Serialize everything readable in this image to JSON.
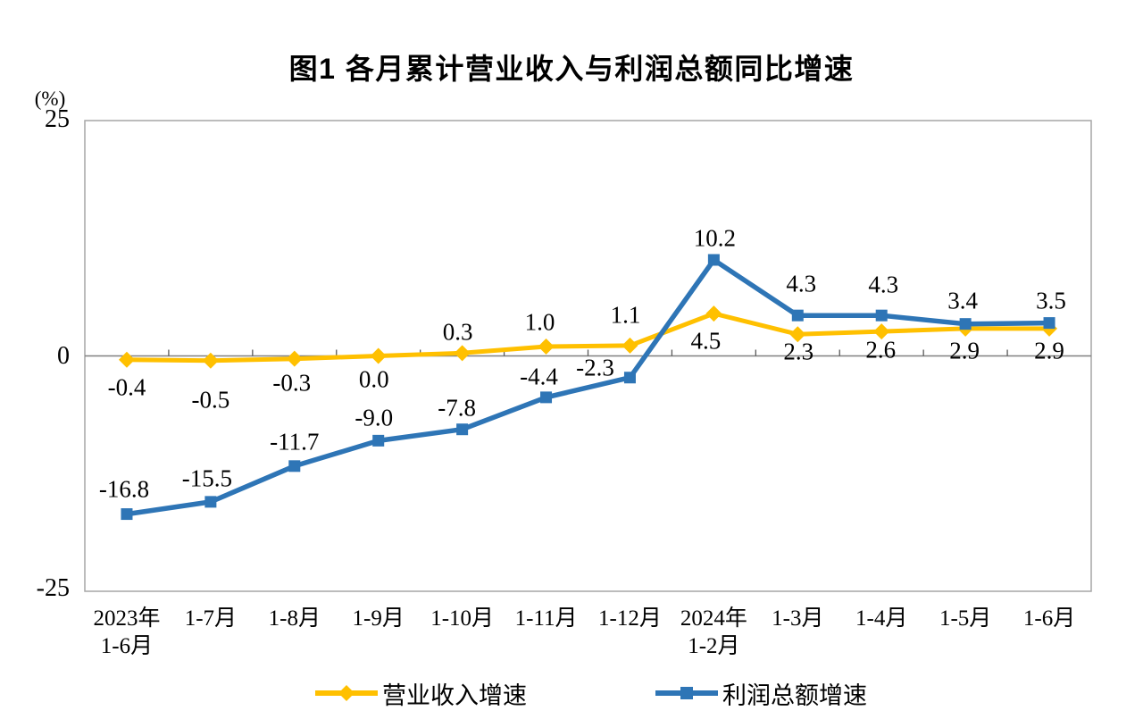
{
  "title": "图1 各月累计营业收入与利润总额同比增速",
  "y_axis": {
    "unit_label": "(%)",
    "ticks": [
      "25",
      "0",
      "-25"
    ]
  },
  "chart_data": {
    "type": "line",
    "title": "图1 各月累计营业收入与利润总额同比增速",
    "ylabel": "(%)",
    "ylim": [
      -25,
      25
    ],
    "y_ticks": [
      25,
      0,
      -25
    ],
    "grid": "zero-line-only",
    "legend_position": "bottom",
    "categories": [
      "2023年\n1-6月",
      "1-7月",
      "1-8月",
      "1-9月",
      "1-10月",
      "1-11月",
      "1-12月",
      "2024年\n1-2月",
      "1-3月",
      "1-4月",
      "1-5月",
      "1-6月"
    ],
    "series": [
      {
        "name": "营业收入增速",
        "color": "#FFC000",
        "marker": "diamond",
        "values": [
          -0.4,
          -0.5,
          -0.3,
          0.0,
          0.3,
          1.0,
          1.1,
          4.5,
          2.3,
          2.6,
          2.9,
          2.9
        ],
        "labels": [
          "-0.4",
          "-0.5",
          "-0.3",
          "0.0",
          "0.3",
          "1.0",
          "1.1",
          "4.5",
          "2.3",
          "2.6",
          "2.9",
          "2.9"
        ],
        "label_offsets": [
          [
            0,
            31
          ],
          [
            0,
            44
          ],
          [
            -3,
            27
          ],
          [
            -5,
            26
          ],
          [
            -5,
            -23
          ],
          [
            -7,
            -27
          ],
          [
            -5,
            -34
          ],
          [
            -9,
            31
          ],
          [
            1,
            20
          ],
          [
            -1,
            21
          ],
          [
            -1,
            25
          ],
          [
            0,
            25
          ]
        ]
      },
      {
        "name": "利润总额增速",
        "color": "#2E75B6",
        "marker": "square",
        "values": [
          -16.8,
          -15.5,
          -11.7,
          -9.0,
          -7.8,
          -4.4,
          -2.3,
          10.2,
          4.3,
          4.3,
          3.4,
          3.5
        ],
        "labels": [
          "-16.8",
          "-15.5",
          "-11.7",
          "-9.0",
          "-7.8",
          "-4.4",
          "-2.3",
          "10.2",
          "4.3",
          "4.3",
          "3.4",
          "3.5"
        ],
        "label_offsets": [
          [
            -3,
            -28
          ],
          [
            -4,
            -26
          ],
          [
            0,
            -27
          ],
          [
            -5,
            -25
          ],
          [
            -6,
            -24
          ],
          [
            -8,
            -23
          ],
          [
            -39,
            -11
          ],
          [
            1,
            -24
          ],
          [
            4,
            -35
          ],
          [
            2,
            -34
          ],
          [
            -3,
            -26
          ],
          [
            2,
            -25
          ]
        ]
      }
    ],
    "colors": {
      "axis_line": "#808080",
      "plot_border": "#A6A6A6",
      "tick": "#595959",
      "text": "#000000"
    }
  }
}
